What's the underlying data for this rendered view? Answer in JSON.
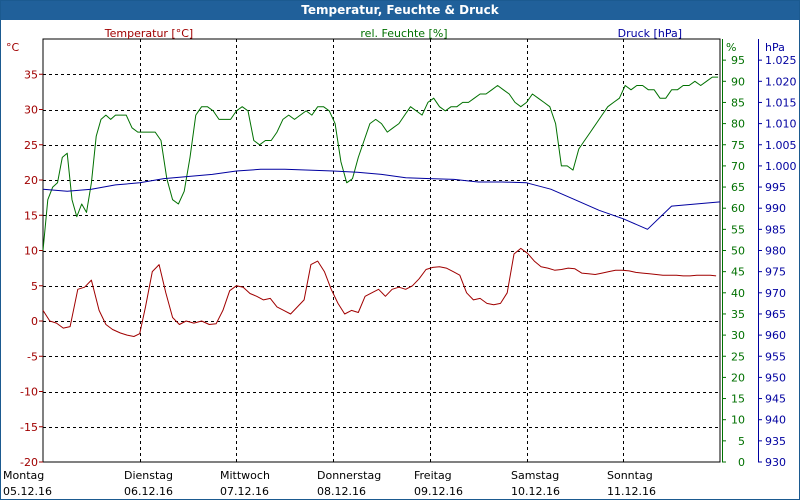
{
  "chart_data": {
    "type": "line",
    "title": "Temperatur, Feuchte & Druck",
    "x": {
      "days": [
        "Montag",
        "Dienstag",
        "Mittwoch",
        "Donnerstag",
        "Freitag",
        "Samstag",
        "Sonntag"
      ],
      "dates": [
        "05.12.16",
        "06.12.16",
        "07.12.16",
        "08.12.16",
        "09.12.16",
        "10.12.16",
        "11.12.16"
      ],
      "range_days": [
        0,
        7.0
      ]
    },
    "axes": {
      "temperature": {
        "label": "Temperatur [°C]",
        "unit": "°C",
        "min": -20,
        "max": 40,
        "ticks": [
          -20,
          -15,
          -10,
          -5,
          0,
          5,
          10,
          15,
          20,
          25,
          30,
          35
        ],
        "color": "#a00000"
      },
      "humidity": {
        "label": "rel. Feuchte [%]",
        "unit": "%",
        "min": 0,
        "max": 100,
        "ticks": [
          0,
          5,
          10,
          15,
          20,
          25,
          30,
          35,
          40,
          45,
          50,
          55,
          60,
          65,
          70,
          75,
          80,
          85,
          90,
          95
        ],
        "color": "#007000"
      },
      "pressure": {
        "label": "Druck [hPa]",
        "unit": "hPa",
        "min": 930,
        "max": 1030,
        "ticks": [
          "930",
          "935",
          "940",
          "945",
          "950",
          "955",
          "960",
          "965",
          "970",
          "975",
          "980",
          "985",
          "990",
          "995",
          "1.000",
          "1.005",
          "1.010",
          "1.015",
          "1.020",
          "1.025"
        ],
        "color": "#0000a0"
      }
    },
    "grid": true,
    "series": [
      {
        "name": "Temperatur [°C]",
        "axis": "temperature",
        "color": "#a00000",
        "x": [
          0,
          0.07,
          0.14,
          0.21,
          0.28,
          0.36,
          0.43,
          0.5,
          0.58,
          0.65,
          0.72,
          0.8,
          0.87,
          0.94,
          1.0,
          1.06,
          1.13,
          1.2,
          1.27,
          1.34,
          1.41,
          1.48,
          1.56,
          1.64,
          1.72,
          1.79,
          1.86,
          1.93,
          2.0,
          2.07,
          2.14,
          2.21,
          2.28,
          2.35,
          2.42,
          2.49,
          2.56,
          2.63,
          2.7,
          2.77,
          2.84,
          2.91,
          2.98,
          3.05,
          3.12,
          3.19,
          3.26,
          3.33,
          3.4,
          3.47,
          3.54,
          3.61,
          3.68,
          3.75,
          3.82,
          3.89,
          3.96,
          4.03,
          4.1,
          4.17,
          4.24,
          4.31,
          4.38,
          4.45,
          4.52,
          4.59,
          4.66,
          4.73,
          4.8,
          4.87,
          4.94,
          5.01,
          5.08,
          5.15,
          5.22,
          5.29,
          5.36,
          5.43,
          5.5,
          5.57,
          5.64,
          5.71,
          5.78,
          5.85,
          5.92,
          5.99,
          6.06,
          6.13,
          6.2,
          6.27,
          6.34,
          6.41,
          6.48,
          6.55,
          6.62,
          6.69,
          6.76,
          6.83,
          6.9,
          6.96
        ],
        "values": [
          1.5,
          0,
          -0.3,
          -1,
          -0.8,
          4.5,
          4.8,
          5.8,
          1.5,
          -0.5,
          -1.2,
          -1.7,
          -2,
          -2.2,
          -1.8,
          2,
          7,
          8,
          4,
          0.5,
          -0.5,
          0,
          -0.3,
          0,
          -0.5,
          -0.4,
          1.5,
          4.3,
          5,
          4.8,
          3.9,
          3.5,
          3,
          3.2,
          2,
          1.5,
          1,
          2,
          3,
          8,
          8.5,
          7,
          4.5,
          2.5,
          1,
          1.5,
          1.2,
          3.5,
          4,
          4.5,
          3.5,
          4.5,
          4.8,
          4.5,
          5,
          6,
          7.3,
          7.6,
          7.7,
          7.5,
          7,
          6.5,
          4,
          3,
          3.2,
          2.5,
          2.3,
          2.5,
          4,
          9.5,
          10.3,
          9.6,
          8.5,
          7.7,
          7.5,
          7.2,
          7.3,
          7.5,
          7.4,
          6.8,
          6.7,
          6.6,
          6.8,
          7,
          7.2,
          7.2,
          7.1,
          6.9,
          6.8,
          6.7,
          6.6,
          6.5,
          6.5,
          6.5,
          6.4,
          6.4,
          6.5,
          6.5,
          6.5,
          6.4
        ]
      },
      {
        "name": "rel. Feuchte [%]",
        "axis": "humidity",
        "color": "#007000",
        "x": [
          0,
          0.05,
          0.1,
          0.15,
          0.2,
          0.25,
          0.3,
          0.35,
          0.4,
          0.45,
          0.5,
          0.55,
          0.6,
          0.65,
          0.7,
          0.75,
          0.8,
          0.86,
          0.92,
          0.98,
          1.04,
          1.1,
          1.16,
          1.22,
          1.28,
          1.34,
          1.4,
          1.46,
          1.52,
          1.58,
          1.64,
          1.7,
          1.76,
          1.82,
          1.88,
          1.94,
          2.0,
          2.06,
          2.12,
          2.18,
          2.24,
          2.3,
          2.36,
          2.42,
          2.48,
          2.54,
          2.6,
          2.66,
          2.72,
          2.78,
          2.84,
          2.9,
          2.96,
          3.02,
          3.08,
          3.14,
          3.2,
          3.26,
          3.32,
          3.38,
          3.44,
          3.5,
          3.56,
          3.62,
          3.68,
          3.74,
          3.8,
          3.86,
          3.92,
          3.98,
          4.04,
          4.1,
          4.16,
          4.22,
          4.28,
          4.34,
          4.4,
          4.46,
          4.52,
          4.58,
          4.64,
          4.7,
          4.76,
          4.82,
          4.88,
          4.94,
          5.0,
          5.06,
          5.12,
          5.18,
          5.24,
          5.3,
          5.36,
          5.42,
          5.48,
          5.54,
          5.6,
          5.66,
          5.72,
          5.78,
          5.84,
          5.9,
          5.96,
          6.02,
          6.08,
          6.14,
          6.2,
          6.26,
          6.32,
          6.38,
          6.44,
          6.5,
          6.56,
          6.62,
          6.68,
          6.74,
          6.8,
          6.86,
          6.92,
          6.98
        ],
        "values": [
          50,
          62,
          65,
          66,
          72,
          73,
          62,
          58,
          61,
          59,
          66,
          77,
          81,
          82,
          81,
          82,
          82,
          82,
          79,
          78,
          78,
          78,
          78,
          76,
          67,
          62,
          61,
          64,
          72,
          82,
          84,
          84,
          83,
          81,
          81,
          81,
          83,
          84,
          83,
          76,
          75,
          76,
          76,
          78,
          81,
          82,
          81,
          82,
          83,
          82,
          84,
          84,
          83,
          80,
          71,
          66,
          67,
          72,
          76,
          80,
          81,
          80,
          78,
          79,
          80,
          82,
          84,
          83,
          82,
          85,
          86,
          84,
          83,
          84,
          84,
          85,
          85,
          86,
          87,
          87,
          88,
          89,
          88,
          87,
          85,
          84,
          85,
          87,
          86,
          85,
          84,
          80,
          70,
          70,
          69,
          74,
          76,
          78,
          80,
          82,
          84,
          85,
          86,
          89,
          88,
          89,
          89,
          88,
          88,
          86,
          86,
          88,
          88,
          89,
          89,
          90,
          89,
          90,
          91,
          91
        ]
      },
      {
        "name": "Druck [hPa]",
        "axis": "pressure",
        "color": "#0000a0",
        "x": [
          0,
          0.25,
          0.5,
          0.75,
          1.0,
          1.25,
          1.5,
          1.75,
          2.0,
          2.25,
          2.5,
          2.75,
          3.0,
          3.25,
          3.5,
          3.75,
          4.0,
          4.25,
          4.5,
          4.75,
          5.0,
          5.25,
          5.5,
          5.75,
          6.0,
          6.25,
          6.5,
          6.75,
          7.0
        ],
        "values": [
          994.5,
          994,
          994.5,
          995.5,
          996,
          997,
          997.5,
          998,
          998.8,
          999.2,
          999.2,
          999,
          998.8,
          998.5,
          998,
          997.2,
          997,
          996.8,
          996.2,
          996.2,
          996,
          994.5,
          992,
          989.5,
          987.5,
          985,
          990.5,
          991,
          991.5
        ]
      }
    ]
  }
}
